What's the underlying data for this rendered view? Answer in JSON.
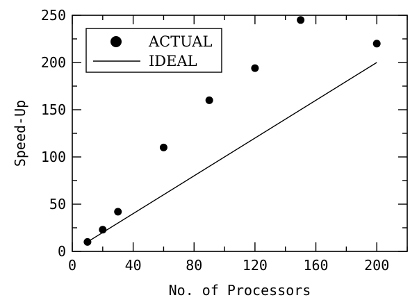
{
  "chart_data": {
    "type": "scatter",
    "xlabel": "No. of Processors",
    "ylabel": "Speed-Up",
    "xlim": [
      0,
      220
    ],
    "ylim": [
      0,
      250
    ],
    "x_ticks": [
      0,
      40,
      80,
      120,
      160,
      200
    ],
    "y_ticks": [
      0,
      50,
      100,
      150,
      200,
      250
    ],
    "grid": false,
    "legend_position": "top-left",
    "series": [
      {
        "name": "ACTUAL",
        "kind": "scatter",
        "x": [
          10,
          20,
          30,
          60,
          90,
          120,
          150,
          200
        ],
        "y": [
          10,
          23,
          42,
          110,
          160,
          194,
          245,
          220
        ]
      },
      {
        "name": "IDEAL",
        "kind": "line",
        "x": [
          10,
          200
        ],
        "y": [
          10,
          200
        ]
      }
    ]
  }
}
